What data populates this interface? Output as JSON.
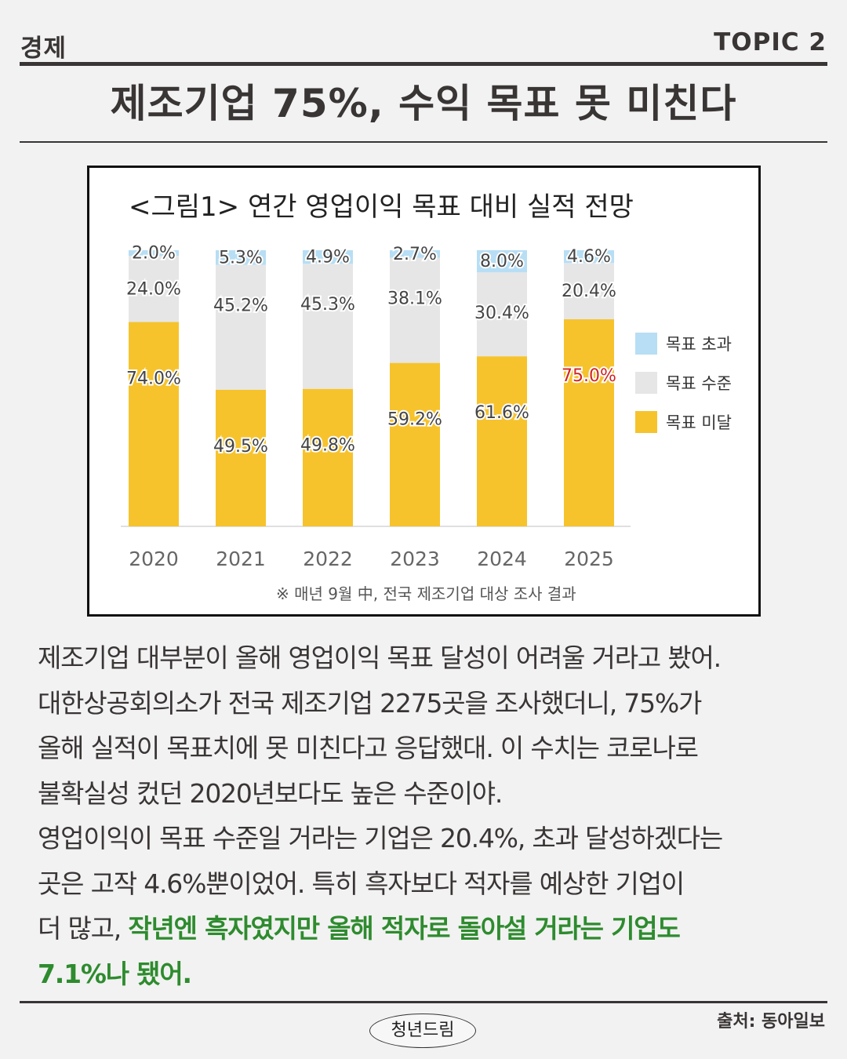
{
  "header": {
    "category": "경제",
    "topic": "TOPIC 2"
  },
  "headline": "제조기업 75%, 수익 목표 못 미친다",
  "chart_data": {
    "type": "bar",
    "stacked": true,
    "title": "<그림1> 연간 영업이익 목표 대비 실적 전망",
    "categories": [
      "2020",
      "2021",
      "2022",
      "2023",
      "2024",
      "2025"
    ],
    "series": [
      {
        "name": "목표 미달",
        "color": "#f6c32d",
        "values": [
          74.0,
          49.5,
          49.8,
          59.2,
          61.6,
          75.0
        ],
        "labels": [
          "74.0%",
          "49.5%",
          "49.8%",
          "59.2%",
          "61.6%",
          "75.0%"
        ]
      },
      {
        "name": "목표 수준",
        "color": "#e6e6e6",
        "values": [
          24.0,
          45.2,
          45.3,
          38.1,
          30.4,
          20.4
        ],
        "labels": [
          "24.0%",
          "45.2%",
          "45.3%",
          "38.1%",
          "30.4%",
          "20.4%"
        ]
      },
      {
        "name": "목표 초과",
        "color": "#b7def4",
        "values": [
          2.0,
          5.3,
          4.9,
          2.7,
          8.0,
          4.6
        ],
        "labels": [
          "2.0%",
          "5.3%",
          "4.9%",
          "2.7%",
          "8.0%",
          "4.6%"
        ]
      }
    ],
    "highlight": {
      "category": "2025",
      "series": "목표 미달",
      "color": "#d22222"
    },
    "ylim": [
      0,
      100
    ],
    "legend_position": "right",
    "footnote": "※ 매년 9월 中, 전국 제조기업 대상 조사 결과"
  },
  "article": {
    "lines": [
      "제조기업 대부분이 올해 영업이익 목표 달성이 어려울 거라고 봤어.",
      "대한상공회의소가 전국 제조기업 2275곳을 조사했더니, 75%가",
      "올해 실적이 목표치에 못 미친다고 응답했대. 이 수치는 코로나로",
      "불확실성 컸던 2020년보다도 높은 수준이야.",
      "영업이익이 목표 수준일 거라는 기업은 20.4%, 초과 달성하겠다는",
      "곳은 고작 4.6%뿐이었어. 특히 흑자보다 적자를 예상한 기업이"
    ],
    "line7_plain": "더 많고, ",
    "line7_highlight": "작년엔 흑자였지만 올해 적자로 돌아설 거라는 기업도",
    "line8_highlight": "7.1%나 됐어."
  },
  "footer": {
    "source": "출처: 동아일보",
    "brand": "청년드림"
  }
}
